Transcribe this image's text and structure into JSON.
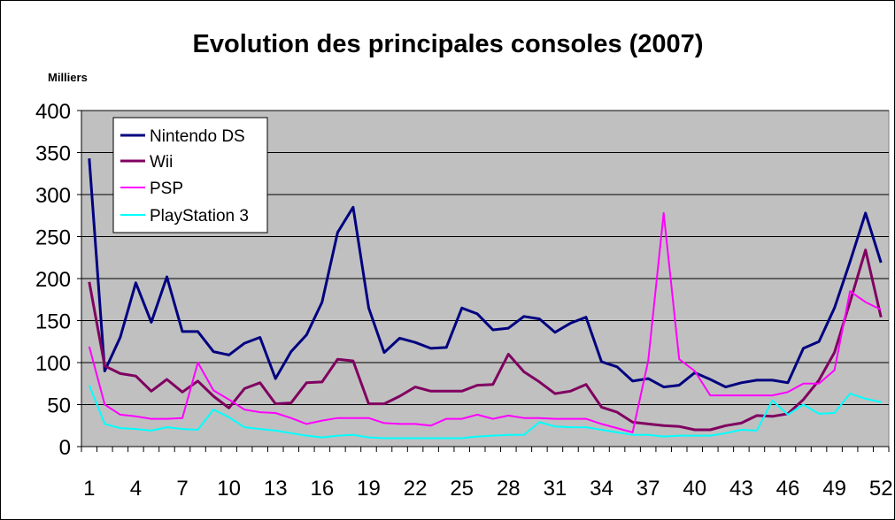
{
  "chart_data": {
    "type": "line",
    "title": "Evolution des principales consoles (2007)",
    "unit_label": "Milliers",
    "xlabel": "",
    "ylabel": "",
    "ylim": [
      0,
      400
    ],
    "y_ticks": [
      0,
      50,
      100,
      150,
      200,
      250,
      300,
      350,
      400
    ],
    "x_tick_labels": [
      "1",
      "4",
      "7",
      "10",
      "13",
      "16",
      "19",
      "22",
      "25",
      "28",
      "31",
      "34",
      "37",
      "40",
      "43",
      "46",
      "49",
      "52"
    ],
    "x": [
      1,
      2,
      3,
      4,
      5,
      6,
      7,
      8,
      9,
      10,
      11,
      12,
      13,
      14,
      15,
      16,
      17,
      18,
      19,
      20,
      21,
      22,
      23,
      24,
      25,
      26,
      27,
      28,
      29,
      30,
      31,
      32,
      33,
      34,
      35,
      36,
      37,
      38,
      39,
      40,
      41,
      42,
      43,
      44,
      45,
      46,
      47,
      48,
      49,
      50,
      51,
      52
    ],
    "grid": true,
    "legend_position": "top-left",
    "plot_background": "#c0c0c0",
    "series": [
      {
        "name": "Nintendo DS",
        "color": "#000080",
        "values": [
          343,
          90,
          130,
          195,
          148,
          202,
          137,
          137,
          113,
          109,
          123,
          130,
          81,
          113,
          133,
          172,
          255,
          285,
          165,
          112,
          129,
          124,
          117,
          118,
          165,
          158,
          139,
          141,
          155,
          152,
          136,
          147,
          154,
          101,
          95,
          78,
          81,
          71,
          73,
          88,
          80,
          71,
          76,
          79,
          79,
          76,
          117,
          125,
          165,
          220,
          278,
          219
        ]
      },
      {
        "name": "Wii",
        "color": "#800060",
        "values": [
          196,
          96,
          87,
          84,
          66,
          80,
          65,
          78,
          60,
          46,
          69,
          76,
          51,
          52,
          76,
          77,
          104,
          102,
          51,
          51,
          60,
          71,
          66,
          66,
          66,
          73,
          74,
          110,
          89,
          77,
          63,
          66,
          74,
          47,
          41,
          29,
          27,
          25,
          24,
          20,
          20,
          25,
          28,
          37,
          36,
          39,
          56,
          79,
          112,
          172,
          234,
          154
        ]
      },
      {
        "name": "PSP",
        "color": "#ff00ff",
        "values": [
          119,
          50,
          38,
          36,
          33,
          33,
          34,
          100,
          67,
          56,
          44,
          41,
          40,
          34,
          27,
          31,
          34,
          34,
          34,
          28,
          27,
          27,
          25,
          33,
          33,
          38,
          33,
          37,
          34,
          34,
          33,
          33,
          33,
          27,
          22,
          17,
          102,
          278,
          104,
          90,
          61,
          61,
          61,
          61,
          61,
          65,
          75,
          75,
          91,
          185,
          172,
          163
        ]
      },
      {
        "name": "PlayStation 3",
        "color": "#00ffff",
        "values": [
          73,
          27,
          22,
          21,
          19,
          23,
          21,
          20,
          44,
          35,
          23,
          21,
          19,
          16,
          13,
          11,
          13,
          14,
          11,
          10,
          10,
          10,
          10,
          10,
          10,
          12,
          13,
          14,
          14,
          29,
          24,
          23,
          23,
          20,
          17,
          14,
          14,
          12,
          13,
          13,
          13,
          16,
          20,
          19,
          55,
          38,
          50,
          39,
          40,
          63,
          57,
          53
        ]
      }
    ]
  }
}
